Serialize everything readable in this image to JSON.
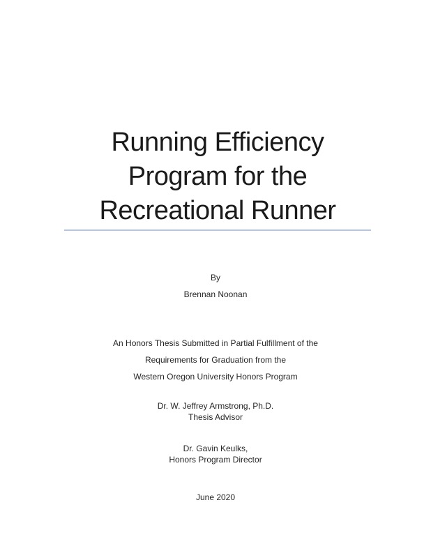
{
  "page": {
    "title_lines": [
      "Running Efficiency",
      "Program for the",
      "Recreational Runner"
    ],
    "byline": {
      "label": "By",
      "author": "Brennan Noonan"
    },
    "statement_lines": [
      "An Honors Thesis Submitted in Partial Fulfillment of the",
      "Requirements for Graduation from the",
      "Western Oregon University Honors Program"
    ],
    "advisor": {
      "name": "Dr. W. Jeffrey Armstrong, Ph.D.",
      "role": "Thesis Advisor"
    },
    "director": {
      "name": "Dr. Gavin Keulks,",
      "role": "Honors Program Director"
    },
    "date": "June 2020",
    "colors": {
      "text": "#1c1c1c",
      "title_underline": "#b4c6e7",
      "background": "#ffffff"
    }
  }
}
